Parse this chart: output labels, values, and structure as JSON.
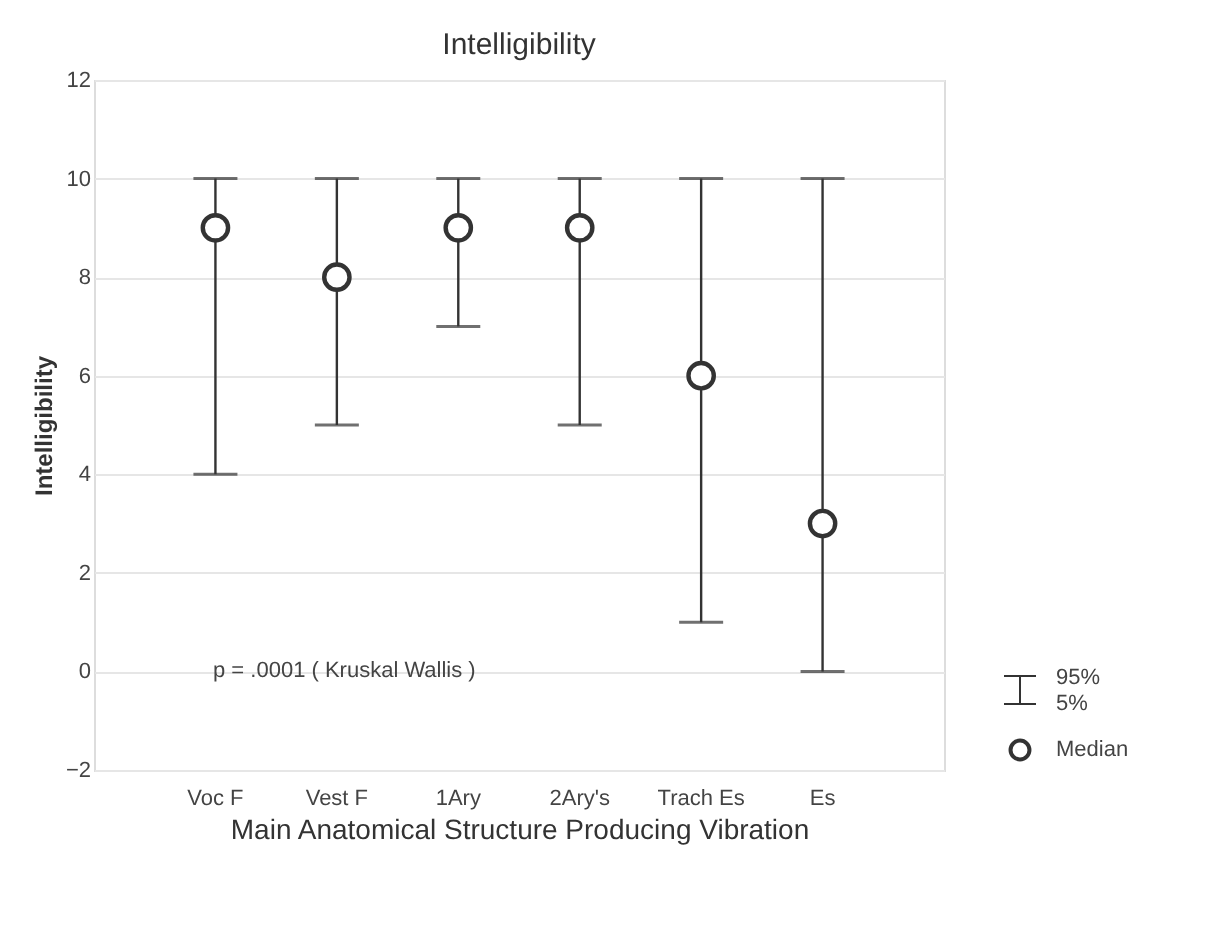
{
  "chart_data": {
    "type": "scatter",
    "title": "Intelligibility",
    "xlabel": "Main Anatomical Structure Producing Vibration",
    "ylabel": "Intelligibility",
    "categories": [
      "Voc F",
      "Vest F",
      "1Ary",
      "2Ary's",
      "Trach Es",
      "Es"
    ],
    "series": [
      {
        "name": "Median",
        "color": "#333333",
        "values": [
          9,
          8,
          9,
          9,
          6,
          3
        ],
        "errors": [
          [
            4,
            10
          ],
          [
            5,
            10
          ],
          [
            7,
            10
          ],
          [
            5,
            10
          ],
          [
            1,
            10
          ],
          [
            0,
            10
          ]
        ]
      }
    ],
    "ylim": [
      -2,
      12
    ],
    "yticks": [
      -2,
      0,
      2,
      4,
      6,
      8,
      10,
      12
    ],
    "grid": "y",
    "marker": "circle",
    "legend": "bottom right",
    "annotations": [
      "p = .0001 ( Kruskal Wallis )",
      "95%",
      "5%"
    ]
  }
}
